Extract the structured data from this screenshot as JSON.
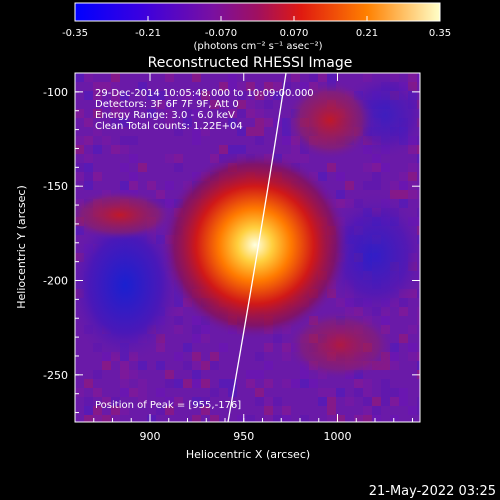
{
  "colorbar": {
    "ticks": [
      "-0.35",
      "-0.21",
      "-0.070",
      "0.070",
      "0.21",
      "0.35"
    ],
    "unit_label": "(photons cm⁻² s⁻¹ asec⁻²)"
  },
  "title": "Reconstructed RHESSI Image",
  "info_lines": [
    "29-Dec-2014 10:05:48.000 to 10:09:00.000",
    "Detectors: 3F 6F 7F 9F, Att 0",
    "Energy Range: 3.0 - 6.0 keV",
    "Clean     Total counts: 1.22E+04"
  ],
  "peak_text": "Position of Peak = [955,-176]",
  "axes": {
    "xlabel": "Heliocentric X (arcsec)",
    "ylabel": "Heliocentric Y (arcsec)",
    "xticks": [
      "900",
      "950",
      "1000"
    ],
    "yticks": [
      "-100",
      "-150",
      "-200",
      "-250"
    ]
  },
  "footer_date": "21-May-2022 03:25",
  "colors": {
    "background": "#000000",
    "low": "#0000ff",
    "mid_low": "#6a1aa8",
    "mid": "#c00040",
    "high": "#ff8a00",
    "peak": "#ffffe0"
  }
}
